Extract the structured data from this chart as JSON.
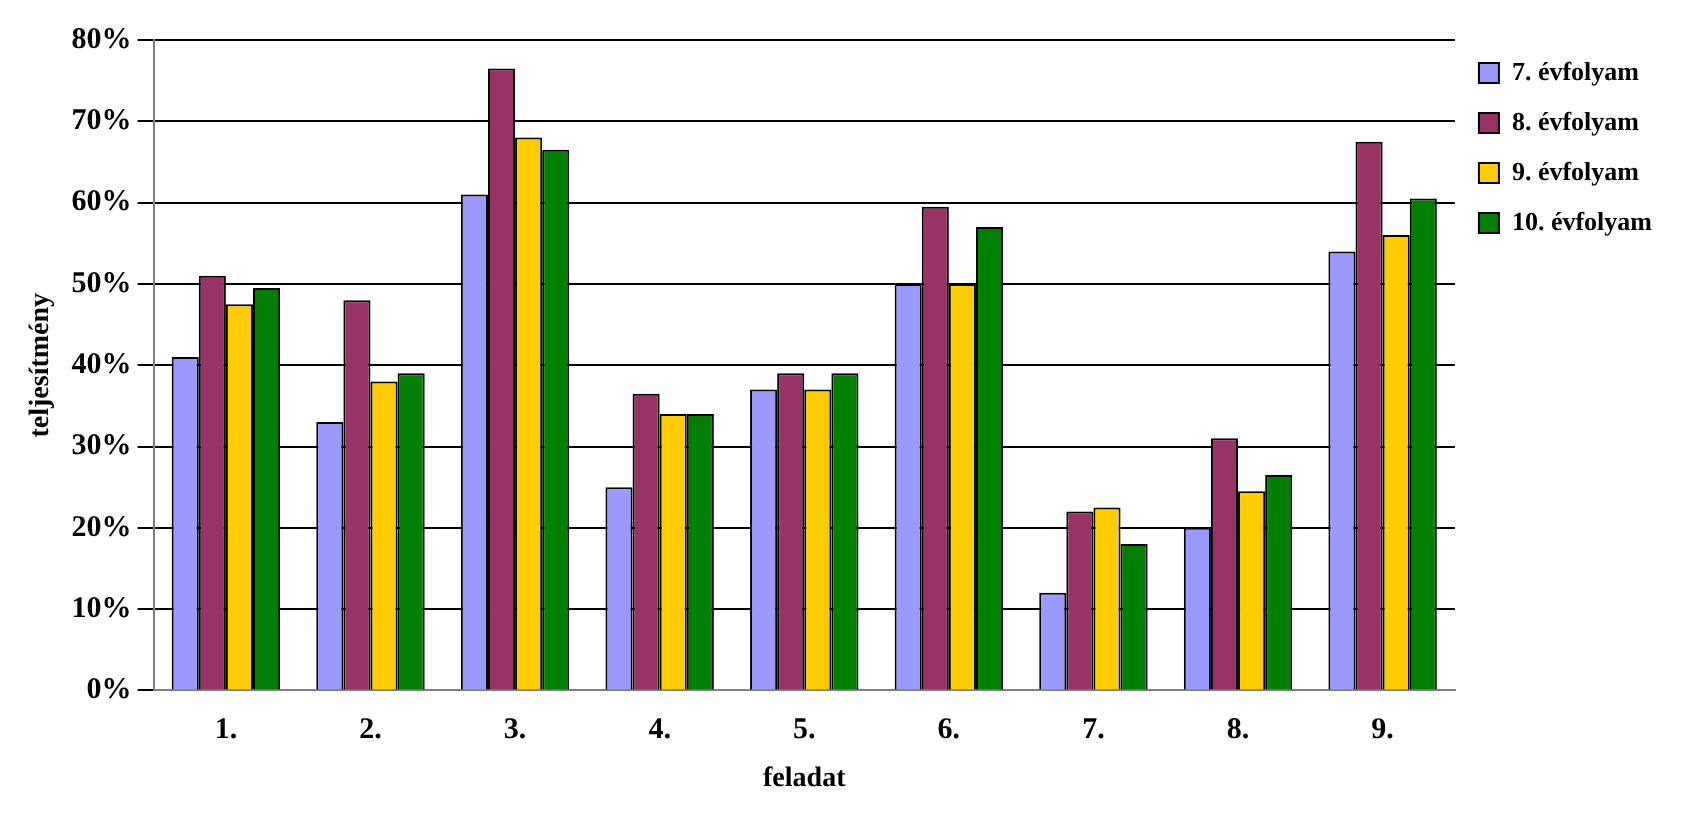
{
  "chart_data": {
    "type": "bar",
    "xlabel": "feladat",
    "ylabel": "teljesítmény",
    "categories": [
      "1.",
      "2.",
      "3.",
      "4.",
      "5.",
      "6.",
      "7.",
      "8.",
      "9."
    ],
    "series": [
      {
        "name": "7. évfolyam",
        "color": "#9999ff",
        "values": [
          41,
          33,
          61,
          25,
          37,
          50,
          12,
          20,
          54
        ]
      },
      {
        "name": "8. évfolyam",
        "color": "#993366",
        "values": [
          51,
          48,
          76.5,
          36.5,
          39,
          59.5,
          22,
          31,
          67.5
        ]
      },
      {
        "name": "9. évfolyam",
        "color": "#ffcc00",
        "values": [
          47.5,
          38,
          68,
          34,
          37,
          50,
          22.5,
          24.5,
          56
        ]
      },
      {
        "name": "10. évfolyam",
        "color": "#008000",
        "values": [
          49.5,
          39,
          66.5,
          34,
          39,
          57,
          18,
          26.5,
          60.5
        ]
      }
    ],
    "ylim": [
      0,
      80
    ],
    "yticks": [
      {
        "value": 0,
        "label": "0%"
      },
      {
        "value": 10,
        "label": "10%"
      },
      {
        "value": 20,
        "label": "20%"
      },
      {
        "value": 30,
        "label": "30%"
      },
      {
        "value": 40,
        "label": "40%"
      },
      {
        "value": 50,
        "label": "50%"
      },
      {
        "value": 60,
        "label": "60%"
      },
      {
        "value": 70,
        "label": "70%"
      },
      {
        "value": 80,
        "label": "80%"
      }
    ],
    "grid": "y",
    "legend": "right"
  }
}
